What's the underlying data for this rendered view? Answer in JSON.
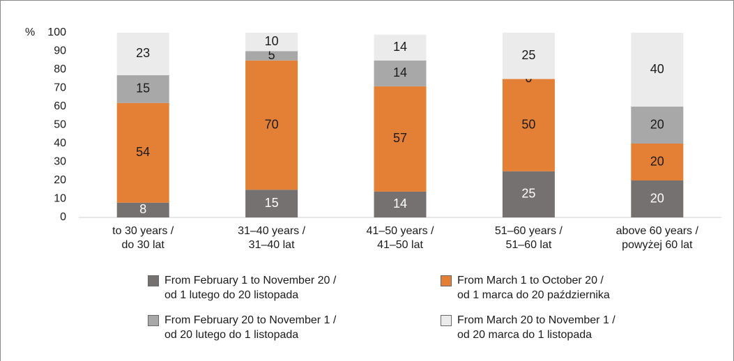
{
  "chart_data": {
    "type": "stacked_bar",
    "y_axis_label": "%",
    "categories": [
      "to 30 years /\ndo 30 lat",
      "31–40 years /\n31–40 lat",
      "41–50 years /\n41–50 lat",
      "51–60 years /\n51–60 lat",
      "above 60 years /\npowyżej 60 lat"
    ],
    "series": [
      {
        "name": "From February 1 to November 20 /\nod 1 lutego do 20 listopada",
        "color": "#767171",
        "label_color": "#ffffff",
        "values": [
          8,
          15,
          14,
          25,
          20
        ]
      },
      {
        "name": "From March 1 to October 20 /\nod 1 marca do 20 października",
        "color": "#e47f36",
        "label_color": "#1a1a1a",
        "values": [
          54,
          70,
          57,
          50,
          20
        ]
      },
      {
        "name": "From February 20 to November 1 /\nod 20 lutego do 1 listopada",
        "color": "#a8a8a8",
        "label_color": "#1a1a1a",
        "values": [
          15,
          5,
          14,
          0,
          20
        ]
      },
      {
        "name": "From March 20 to November 1 /\nod 20 marca do 1 listopada",
        "color": "#ebebeb",
        "label_color": "#1a1a1a",
        "values": [
          23,
          10,
          14,
          25,
          40
        ]
      }
    ],
    "ylim": [
      0,
      100
    ],
    "yticks": [
      0,
      10,
      20,
      30,
      40,
      50,
      60,
      70,
      80,
      90,
      100
    ],
    "grid": false
  }
}
